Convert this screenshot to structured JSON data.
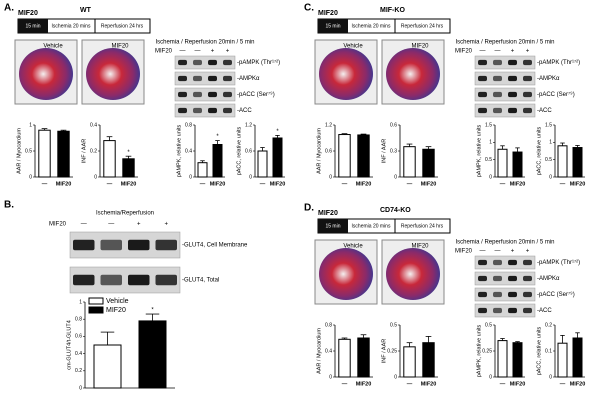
{
  "panels": [
    {
      "letter": "A.",
      "genotype": "WT",
      "prefix": "MIF20",
      "protocol": [
        "15 min",
        "Ischemia 20 mins",
        "Reperfusion 24 hrs"
      ],
      "images": [
        "Vehicle",
        "MIF20"
      ],
      "blot": {
        "header": "Ischemia / Reperfusion 20min / 5 min",
        "treatment": "MIF20",
        "signs": [
          "—",
          "—",
          "+",
          "+"
        ],
        "bands": [
          "-pAMPK (Thr¹⁷²)",
          "-AMPKα",
          "-pACC (Ser⁷⁹)",
          "-ACC"
        ]
      }
    },
    {
      "letter": "B.",
      "blot": {
        "header": "Ischemia/Reperfusion",
        "treatment": "MIF20",
        "signs": [
          "—",
          "—",
          "+",
          "+"
        ],
        "bands": [
          "-GLUT4, Cell Membrane",
          "-GLUT4, Total"
        ]
      }
    },
    {
      "letter": "C.",
      "genotype": "MIF-KO",
      "prefix": "MIF20",
      "protocol": [
        "15 min",
        "Ischemia 20 mins",
        "Reperfusion 24 hrs"
      ],
      "images": [
        "Vehicle",
        "MIF20"
      ],
      "blot": {
        "header": "Ischemia / Reperfusion 20min / 5 min",
        "treatment": "MIF20",
        "signs": [
          "—",
          "—",
          "+",
          "+"
        ],
        "bands": [
          "-pAMPK (Thr¹⁷²)",
          "-AMPKα",
          "-pACC (Ser⁷⁹)",
          "-ACC"
        ]
      }
    },
    {
      "letter": "D.",
      "genotype": "CD74-KO",
      "prefix": "MIF20",
      "protocol": [
        "15 min",
        "Ischemia 20 mins",
        "Reperfusion 24 hrs"
      ],
      "images": [
        "Vehicle",
        "MIF20"
      ],
      "blot": {
        "header": "Ischemia / Reperfusion 20min / 5 min",
        "treatment": "MIF20",
        "signs": [
          "—",
          "—",
          "+",
          "+"
        ],
        "bands": [
          "-pAMPK (Thr¹⁷²)",
          "-AMPKα",
          "-pACC (Ser⁷⁹)",
          "-ACC"
        ]
      }
    }
  ],
  "chart_data": [
    {
      "type": "bar",
      "ylabel": "AAR / Myocardium",
      "categories": [
        "—",
        "MIF20"
      ],
      "values": [
        0.9,
        0.88
      ],
      "errors": [
        0.03,
        0.02
      ],
      "colors": [
        "#ffffff",
        "#000000"
      ],
      "ylim": [
        0,
        1
      ],
      "yticks": [
        0,
        0.5,
        1
      ]
    },
    {
      "type": "bar",
      "ylabel": "INF / AAR",
      "categories": [
        "—",
        "MIF20"
      ],
      "values": [
        0.28,
        0.14
      ],
      "errors": [
        0.03,
        0.02
      ],
      "significance": [
        null,
        "*"
      ],
      "colors": [
        "#ffffff",
        "#000000"
      ],
      "ylim": [
        0,
        0.4
      ],
      "yticks": [
        0,
        0.2,
        0.4
      ]
    },
    {
      "type": "bar",
      "ylabel": "pAMPK, relative units",
      "categories": [
        "—",
        "MIF20"
      ],
      "values": [
        0.22,
        0.5
      ],
      "errors": [
        0.03,
        0.06
      ],
      "significance": [
        null,
        "*"
      ],
      "colors": [
        "#ffffff",
        "#000000"
      ],
      "ylim": [
        0,
        0.8
      ],
      "yticks": [
        0,
        0.4,
        0.8
      ]
    },
    {
      "type": "bar",
      "ylabel": "pACC, relative units",
      "categories": [
        "—",
        "MIF20"
      ],
      "values": [
        0.6,
        0.9
      ],
      "errors": [
        0.08,
        0.06
      ],
      "significance": [
        null,
        "*"
      ],
      "colors": [
        "#ffffff",
        "#000000"
      ],
      "ylim": [
        0,
        1.2
      ],
      "yticks": [
        0,
        0.6,
        1.2
      ]
    },
    {
      "type": "bar",
      "ylabel": "cm-GLUT4/t-GLUT4",
      "categories": [
        null,
        null
      ],
      "legend": [
        "Vehicle",
        "MIF20"
      ],
      "values": [
        0.5,
        0.78
      ],
      "errors": [
        0.15,
        0.08
      ],
      "significance": [
        null,
        "*"
      ],
      "colors": [
        "#ffffff",
        "#000000"
      ],
      "ylim": [
        0,
        1
      ],
      "yticks": [
        0,
        0.2,
        0.4,
        0.6,
        0.8,
        1
      ]
    },
    {
      "type": "bar",
      "ylabel": "AAR / Myocardium",
      "categories": [
        "—",
        "MIF20"
      ],
      "values": [
        0.98,
        0.97
      ],
      "errors": [
        0.02,
        0.02
      ],
      "colors": [
        "#ffffff",
        "#000000"
      ],
      "ylim": [
        0,
        1.2
      ],
      "yticks": [
        0,
        0.6,
        1.2
      ]
    },
    {
      "type": "bar",
      "ylabel": "INF / AAR",
      "categories": [
        "—",
        "MIF20"
      ],
      "values": [
        0.35,
        0.32
      ],
      "errors": [
        0.03,
        0.03
      ],
      "colors": [
        "#ffffff",
        "#000000"
      ],
      "ylim": [
        0,
        0.6
      ],
      "yticks": [
        0,
        0.3,
        0.6
      ]
    },
    {
      "type": "bar",
      "ylabel": "pAMPK, relative units",
      "categories": [
        "—",
        "MIF20"
      ],
      "values": [
        0.8,
        0.72
      ],
      "errors": [
        0.1,
        0.12
      ],
      "colors": [
        "#ffffff",
        "#000000"
      ],
      "ylim": [
        0,
        1.5
      ],
      "yticks": [
        0,
        0.5,
        1,
        1.5
      ]
    },
    {
      "type": "bar",
      "ylabel": "pACC, relative units",
      "categories": [
        "—",
        "MIF20"
      ],
      "values": [
        0.9,
        0.85
      ],
      "errors": [
        0.08,
        0.06
      ],
      "colors": [
        "#ffffff",
        "#000000"
      ],
      "ylim": [
        0,
        1.5
      ],
      "yticks": [
        0,
        0.5,
        1,
        1.5
      ]
    },
    {
      "type": "bar",
      "ylabel": "AAR / Myocardium",
      "categories": [
        "—",
        "MIF20"
      ],
      "values": [
        0.58,
        0.6
      ],
      "errors": [
        0.02,
        0.05
      ],
      "colors": [
        "#ffffff",
        "#000000"
      ],
      "ylim": [
        0,
        0.8
      ],
      "yticks": [
        0,
        0.4,
        0.8
      ]
    },
    {
      "type": "bar",
      "ylabel": "INF / AAR",
      "categories": [
        "—",
        "MIF20"
      ],
      "values": [
        0.29,
        0.33
      ],
      "errors": [
        0.04,
        0.06
      ],
      "colors": [
        "#ffffff",
        "#000000"
      ],
      "ylim": [
        0,
        0.5
      ],
      "yticks": [
        0,
        0.25,
        0.5
      ]
    },
    {
      "type": "bar",
      "ylabel": "pAMPK, relative units",
      "categories": [
        "—",
        "MIF20"
      ],
      "values": [
        0.35,
        0.33
      ],
      "errors": [
        0.02,
        0.01
      ],
      "colors": [
        "#ffffff",
        "#000000"
      ],
      "ylim": [
        0,
        0.5
      ],
      "yticks": [
        0,
        0.25,
        0.5
      ]
    },
    {
      "type": "bar",
      "ylabel": "pACC, relative units",
      "categories": [
        "—",
        "MIF20"
      ],
      "values": [
        0.13,
        0.15
      ],
      "errors": [
        0.03,
        0.02
      ],
      "colors": [
        "#ffffff",
        "#000000"
      ],
      "ylim": [
        0,
        0.2
      ],
      "yticks": [
        0,
        0.1,
        0.2
      ]
    }
  ]
}
